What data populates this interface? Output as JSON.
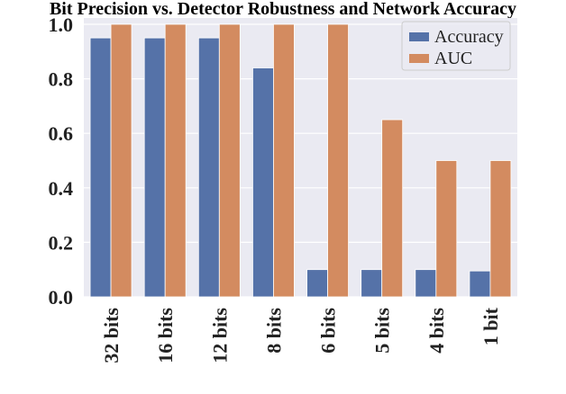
{
  "chart_data": {
    "type": "bar",
    "title": "Bit Precision vs. Detector Robustness and Network Accuracy",
    "xlabel": "",
    "ylabel": "",
    "categories": [
      "32 bits",
      "16 bits",
      "12 bits",
      "8 bits",
      "6 bits",
      "5 bits",
      "4 bits",
      "1 bit"
    ],
    "series": [
      {
        "name": "Accuracy",
        "color": "#5572a8",
        "values": [
          0.95,
          0.95,
          0.95,
          0.84,
          0.1,
          0.1,
          0.1,
          0.095
        ]
      },
      {
        "name": "AUC",
        "color": "#d38b60",
        "values": [
          1.0,
          1.0,
          1.0,
          1.0,
          1.0,
          0.65,
          0.5,
          0.5
        ]
      }
    ],
    "ylim": [
      0,
      1.0
    ],
    "yticks": [
      "0.0",
      "0.2",
      "0.4",
      "0.6",
      "0.8",
      "1.0"
    ],
    "legend": "top-right",
    "grid": true,
    "background": "#eaeaf2"
  }
}
